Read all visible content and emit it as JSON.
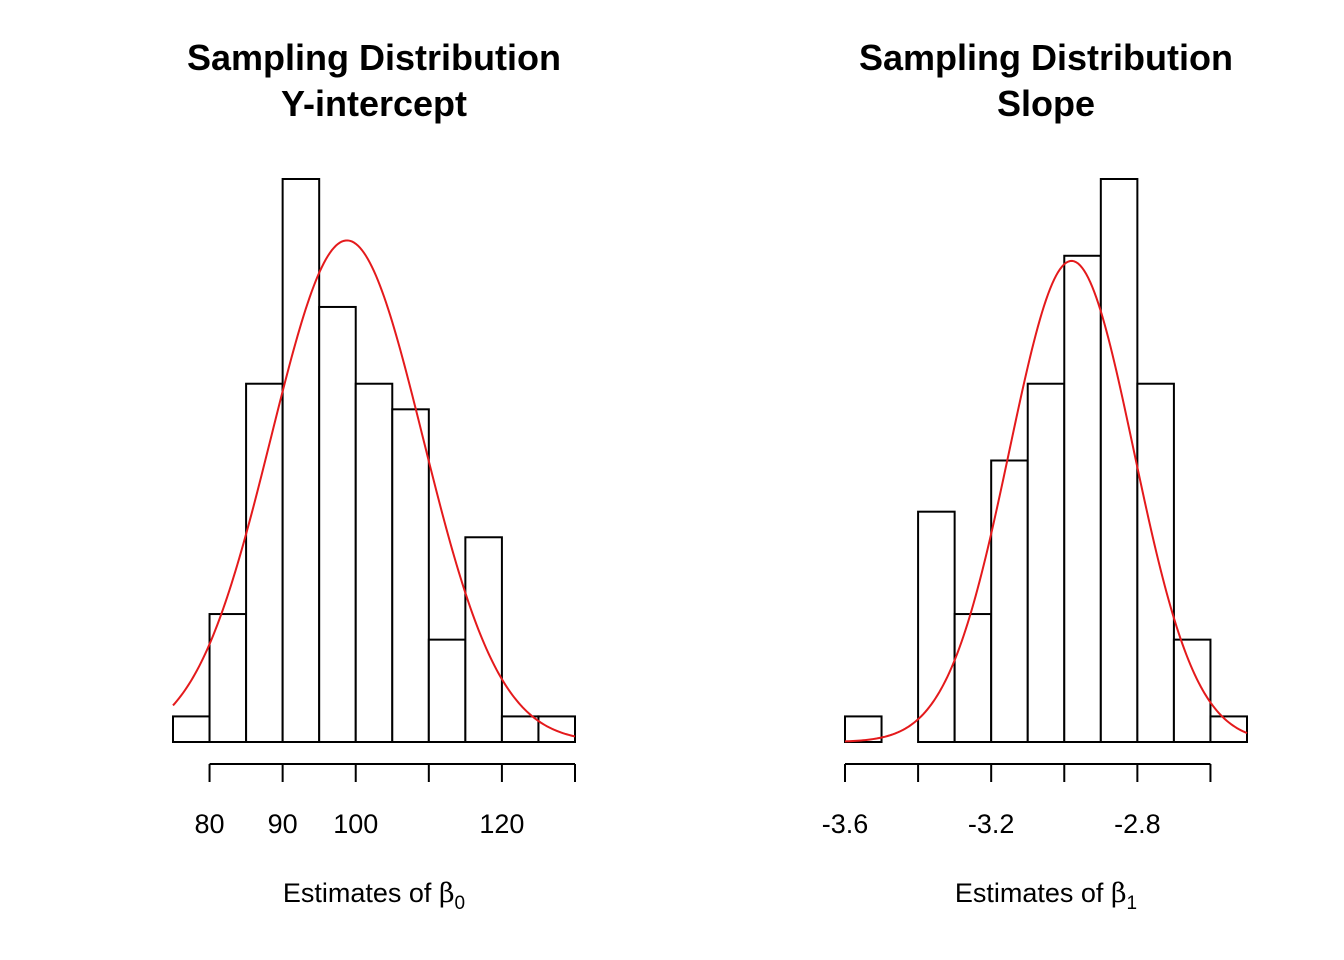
{
  "chart_data": [
    {
      "type": "bar",
      "title": [
        "Sampling Distribution",
        "Y-intercept"
      ],
      "xlabel": {
        "prefix": "Estimates of ",
        "symbol": "β",
        "subscript": "0"
      },
      "bin_edges": [
        75,
        80,
        85,
        90,
        95,
        100,
        105,
        110,
        115,
        120,
        125,
        130
      ],
      "values": [
        1,
        5,
        14,
        22,
        17,
        14,
        13,
        4,
        8,
        1,
        1
      ],
      "ylim": [
        0,
        22
      ],
      "x_ticks": [
        80,
        90,
        100,
        110,
        120,
        130
      ],
      "x_tick_labels": [
        "80",
        "90",
        "100",
        "",
        "120",
        ""
      ],
      "normal_curve": {
        "mean": 98.8,
        "sd": 10.4,
        "peak": 19.6,
        "x_range": [
          75,
          130
        ]
      },
      "curve_color": "#e41a1c"
    },
    {
      "type": "bar",
      "title": [
        "Sampling Distribution",
        "Slope"
      ],
      "xlabel": {
        "prefix": "Estimates of ",
        "symbol": "β",
        "subscript": "1"
      },
      "bin_edges": [
        -3.6,
        -3.5,
        -3.4,
        -3.3,
        -3.2,
        -3.1,
        -3.0,
        -2.9,
        -2.8,
        -2.7,
        -2.6,
        -2.5
      ],
      "values": [
        1,
        0,
        9,
        5,
        11,
        14,
        19,
        22,
        14,
        4,
        1
      ],
      "ylim": [
        0,
        22
      ],
      "x_ticks": [
        -3.6,
        -3.4,
        -3.2,
        -3.0,
        -2.8,
        -2.6
      ],
      "x_tick_labels": [
        "-3.6",
        "",
        "-3.2",
        "",
        "-2.8",
        ""
      ],
      "normal_curve": {
        "mean": -2.98,
        "sd": 0.17,
        "peak": 18.8,
        "x_range": [
          -3.6,
          -2.5
        ]
      },
      "curve_color": "#e41a1c"
    }
  ]
}
